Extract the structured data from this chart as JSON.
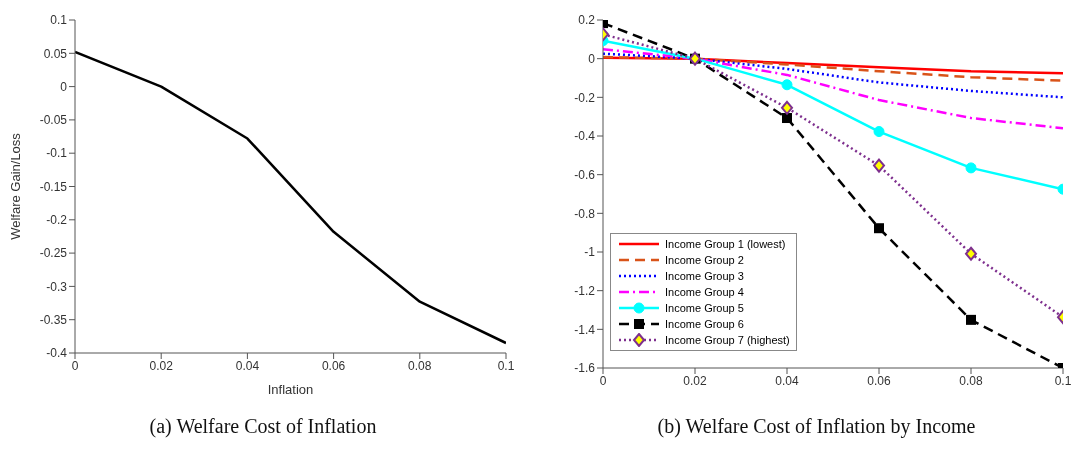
{
  "chart_data": [
    {
      "type": "line",
      "title": "(a) Welfare Cost of Inflation",
      "xlabel": "Inflation",
      "ylabel": "Welfare Gain/Loss",
      "x": [
        0,
        0.02,
        0.04,
        0.06,
        0.08,
        0.1
      ],
      "series": [
        {
          "color": "#000000",
          "values": [
            0.052,
            0.0,
            -0.078,
            -0.218,
            -0.323,
            -0.385
          ]
        }
      ],
      "xlim": [
        0,
        0.1
      ],
      "xticks": [
        0,
        0.02,
        0.04,
        0.06,
        0.08,
        0.1
      ],
      "ylim": [
        -0.4,
        0.1
      ],
      "yticks": [
        -0.4,
        -0.35,
        -0.3,
        -0.25,
        -0.2,
        -0.15,
        -0.1,
        -0.05,
        0,
        0.05,
        0.1
      ],
      "grid": false,
      "legend": false,
      "marker": "none",
      "line_style": "solid"
    },
    {
      "type": "line",
      "title": "(b) Welfare Cost of Inflation by Income",
      "x": [
        0,
        0.02,
        0.04,
        0.06,
        0.08,
        0.1
      ],
      "series": [
        {
          "name": "Income Group 1 (lowest)",
          "color": "#ff0000",
          "marker": "none",
          "line_style": "solid",
          "values": [
            0.005,
            0,
            -0.023,
            -0.044,
            -0.065,
            -0.075
          ]
        },
        {
          "name": "Income Group 2",
          "color": "#d95319",
          "marker": "none",
          "line_style": "dashed",
          "values": [
            0.008,
            0,
            -0.03,
            -0.065,
            -0.096,
            -0.114
          ]
        },
        {
          "name": "Income Group 3",
          "color": "#0000ff",
          "marker": "none",
          "line_style": "dotted",
          "values": [
            0.026,
            0,
            -0.053,
            -0.123,
            -0.167,
            -0.2
          ]
        },
        {
          "name": "Income Group 4",
          "color": "#ff00ff",
          "marker": "none",
          "line_style": "dashdot",
          "values": [
            0.049,
            0,
            -0.084,
            -0.214,
            -0.307,
            -0.36
          ]
        },
        {
          "name": "Income Group 5",
          "color": "#00ffff",
          "marker": "circle",
          "line_style": "solid",
          "values": [
            0.093,
            0,
            -0.135,
            -0.377,
            -0.565,
            -0.675
          ]
        },
        {
          "name": "Income Group 6",
          "color": "#000000",
          "marker": "square",
          "line_style": "dashed",
          "values": [
            0.184,
            0,
            -0.307,
            -0.877,
            -1.351,
            -1.6
          ]
        },
        {
          "name": "Income Group 7 (highest)",
          "color": "#7e2f8e",
          "marker": "diamond",
          "line_style": "dotted",
          "values": [
            0.126,
            0,
            -0.254,
            -0.553,
            -1.009,
            -1.337
          ]
        }
      ],
      "xlim": [
        0,
        0.1
      ],
      "xticks": [
        0,
        0.02,
        0.04,
        0.06,
        0.08,
        0.1
      ],
      "ylim": [
        -1.6,
        0.2
      ],
      "yticks": [
        -1.6,
        -1.4,
        -1.2,
        -1,
        -0.8,
        -0.6,
        -0.4,
        -0.2,
        0,
        0.2
      ],
      "grid": false,
      "legend": "bottom left"
    }
  ]
}
